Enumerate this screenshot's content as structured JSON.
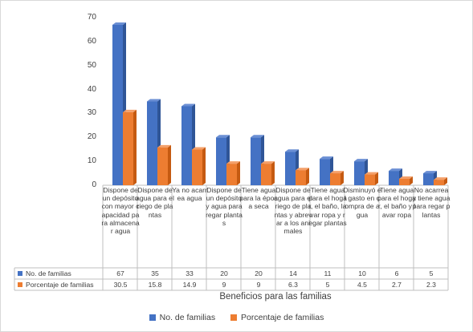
{
  "chart_data": {
    "type": "bar",
    "title": "",
    "xlabel": "Beneficios para las familias",
    "ylabel": "",
    "ylim": [
      0,
      70
    ],
    "yticks": [
      0,
      10,
      20,
      30,
      40,
      50,
      60,
      70
    ],
    "grid": false,
    "legend_position": "bottom",
    "categories": [
      "Dispone de un depósito con mayor capacidad para almacenar agua",
      "Dispone de agua para el riego de plantas",
      "Ya no acarrea agua",
      "Dispone de un depósito y agua para regar plantas",
      "Tiene agua para la época seca",
      "Dispone de agua para el riego de plantas y abrevar a los animales",
      "Tiene agua para el hogar, el baño, lavar ropa y regar plantas",
      "Disminuyó el gasto en compra de agua",
      "Tiene agua para el hogar, el baño y lavar ropa",
      "No acarrea y tiene agua para regar plantas"
    ],
    "series": [
      {
        "name": "No. de familias",
        "color": "#4472c4",
        "side": "#2f5597",
        "top": "#6b8fd4",
        "values": [
          67,
          35,
          33,
          20,
          20,
          14,
          11,
          10,
          6,
          5
        ],
        "labels": [
          "67",
          "35",
          "33",
          "20",
          "20",
          "14",
          "11",
          "10",
          "6",
          "5"
        ]
      },
      {
        "name": "Porcentaje de familias",
        "color": "#ed7d31",
        "side": "#c55a11",
        "top": "#f4a06a",
        "values": [
          30.5,
          15.8,
          14.9,
          9,
          9,
          6.3,
          5,
          4.5,
          2.7,
          2.3
        ],
        "labels": [
          "30.5",
          "15.8",
          "14.9",
          "9",
          "9",
          "6.3",
          "5",
          "4.5",
          "2.7",
          "2.3"
        ]
      }
    ]
  }
}
